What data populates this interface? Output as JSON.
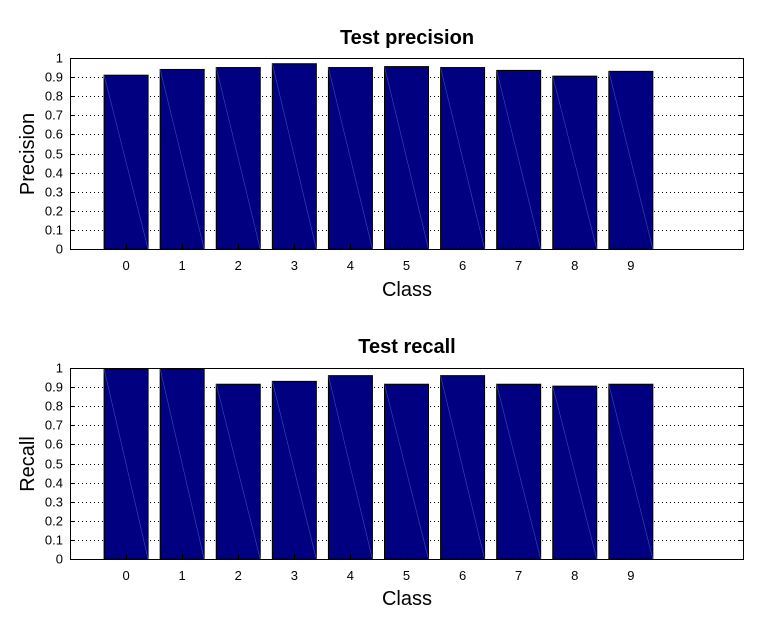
{
  "chart_data": [
    {
      "type": "bar",
      "title": "Test precision",
      "xlabel": "Class",
      "ylabel": "Precision",
      "categories": [
        "0",
        "1",
        "2",
        "3",
        "4",
        "5",
        "6",
        "7",
        "8",
        "9"
      ],
      "values": [
        0.91,
        0.94,
        0.95,
        0.97,
        0.95,
        0.955,
        0.95,
        0.935,
        0.905,
        0.93
      ],
      "ylim": [
        0,
        1
      ],
      "yticks": [
        "0",
        "0.1",
        "0.2",
        "0.3",
        "0.4",
        "0.5",
        "0.6",
        "0.7",
        "0.8",
        "0.9",
        "1"
      ],
      "xlim": [
        -1,
        11
      ],
      "grid": "y-dotted",
      "color": "#000080"
    },
    {
      "type": "bar",
      "title": "Test recall",
      "xlabel": "Class",
      "ylabel": "Recall",
      "categories": [
        "0",
        "1",
        "2",
        "3",
        "4",
        "5",
        "6",
        "7",
        "8",
        "9"
      ],
      "values": [
        0.995,
        0.995,
        0.915,
        0.93,
        0.96,
        0.915,
        0.96,
        0.915,
        0.905,
        0.915
      ],
      "ylim": [
        0,
        1
      ],
      "yticks": [
        "0",
        "0.1",
        "0.2",
        "0.3",
        "0.4",
        "0.5",
        "0.6",
        "0.7",
        "0.8",
        "0.9",
        "1"
      ],
      "xlim": [
        -1,
        11
      ],
      "grid": "y-dotted",
      "color": "#000080"
    }
  ]
}
